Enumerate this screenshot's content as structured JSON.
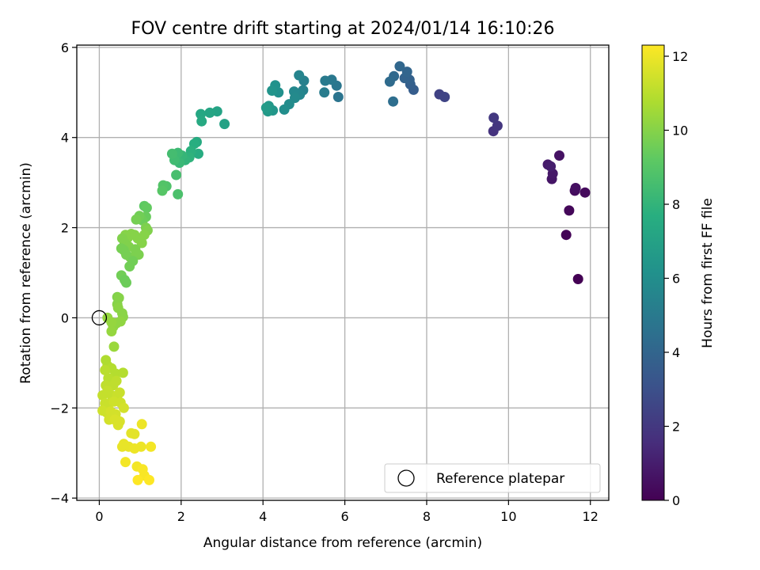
{
  "chart_data": {
    "type": "scatter",
    "title": "FOV centre drift starting at 2024/01/14 16:10:26",
    "xlabel": "Angular distance from reference (arcmin)",
    "ylabel": "Rotation from reference (arcmin)",
    "xlim": [
      -0.55,
      12.45
    ],
    "ylim": [
      -4.05,
      6.05
    ],
    "xticks": [
      0,
      2,
      4,
      6,
      8,
      10,
      12
    ],
    "yticks": [
      -4,
      -2,
      0,
      2,
      4,
      6
    ],
    "xtick_labels": [
      "0",
      "2",
      "4",
      "6",
      "8",
      "10",
      "12"
    ],
    "ytick_labels": [
      "−4",
      "−2",
      "0",
      "2",
      "4",
      "6"
    ],
    "grid": true,
    "legend_position": "lower-right",
    "colormap": "viridis",
    "colorbar": {
      "label": "Hours from first FF file",
      "range": [
        0,
        12.3
      ],
      "ticks": [
        0,
        2,
        4,
        6,
        8,
        10,
        12
      ],
      "tick_labels": [
        "0",
        "2",
        "4",
        "6",
        "8",
        "10",
        "12"
      ]
    },
    "reference": {
      "name": "Reference platepar",
      "x": 0,
      "y": 0
    },
    "series": [
      {
        "points": [
          [
            11.7,
            0.86,
            0.0
          ],
          [
            11.41,
            1.84,
            0.1
          ],
          [
            11.48,
            2.38,
            0.2
          ],
          [
            11.87,
            2.78,
            0.3
          ],
          [
            11.62,
            2.82,
            0.4
          ],
          [
            11.64,
            2.88,
            0.5
          ],
          [
            11.24,
            3.6,
            0.6
          ],
          [
            11.06,
            3.08,
            0.7
          ],
          [
            11.08,
            3.2,
            0.8
          ],
          [
            10.96,
            3.4,
            0.9
          ],
          [
            11.03,
            3.36,
            1.0
          ],
          [
            9.63,
            4.14,
            1.8
          ],
          [
            9.73,
            4.26,
            1.9
          ],
          [
            9.64,
            4.44,
            2.0
          ],
          [
            8.31,
            4.96,
            2.4
          ],
          [
            8.44,
            4.9,
            2.5
          ],
          [
            7.68,
            5.06,
            3.6
          ],
          [
            7.6,
            5.18,
            3.7
          ],
          [
            7.58,
            5.28,
            3.8
          ],
          [
            7.46,
            5.32,
            3.9
          ],
          [
            7.52,
            5.46,
            4.0
          ],
          [
            7.34,
            5.58,
            4.1
          ],
          [
            7.2,
            5.36,
            4.2
          ],
          [
            7.1,
            5.24,
            4.3
          ],
          [
            7.18,
            4.8,
            4.4
          ],
          [
            5.84,
            4.9,
            4.7
          ],
          [
            5.8,
            5.15,
            4.8
          ],
          [
            5.68,
            5.28,
            4.9
          ],
          [
            5.52,
            5.26,
            5.0
          ],
          [
            5.5,
            5.0,
            5.1
          ],
          [
            5.0,
            5.26,
            5.3
          ],
          [
            4.98,
            5.05,
            5.4
          ],
          [
            4.88,
            5.38,
            5.5
          ],
          [
            4.9,
            4.95,
            5.6
          ],
          [
            4.76,
            5.02,
            5.7
          ],
          [
            4.78,
            4.88,
            5.8
          ],
          [
            4.64,
            4.74,
            5.9
          ],
          [
            4.52,
            4.62,
            6.0
          ],
          [
            4.38,
            5.0,
            6.1
          ],
          [
            4.3,
            5.16,
            6.2
          ],
          [
            4.22,
            5.04,
            6.3
          ],
          [
            4.24,
            4.6,
            6.4
          ],
          [
            4.14,
            4.7,
            6.5
          ],
          [
            4.12,
            4.58,
            6.6
          ],
          [
            4.08,
            4.66,
            6.7
          ],
          [
            3.06,
            4.3,
            7.0
          ],
          [
            2.88,
            4.58,
            7.1
          ],
          [
            2.7,
            4.55,
            7.2
          ],
          [
            2.48,
            4.52,
            7.3
          ],
          [
            2.5,
            4.36,
            7.4
          ],
          [
            2.38,
            3.9,
            7.5
          ],
          [
            2.42,
            3.64,
            7.6
          ],
          [
            2.32,
            3.86,
            7.7
          ],
          [
            2.24,
            3.7,
            7.8
          ],
          [
            2.2,
            3.56,
            7.9
          ],
          [
            2.1,
            3.5,
            8.0
          ],
          [
            2.02,
            3.6,
            8.1
          ],
          [
            1.96,
            3.44,
            8.2
          ],
          [
            1.92,
            3.66,
            8.3
          ],
          [
            1.84,
            3.5,
            8.4
          ],
          [
            1.78,
            3.64,
            8.5
          ],
          [
            1.88,
            3.17,
            8.6
          ],
          [
            1.92,
            2.74,
            8.7
          ],
          [
            1.64,
            2.92,
            8.8
          ],
          [
            1.56,
            2.94,
            8.9
          ],
          [
            1.54,
            2.82,
            9.0
          ],
          [
            1.1,
            2.48,
            9.2
          ],
          [
            1.16,
            2.44,
            9.3
          ],
          [
            1.14,
            2.24,
            9.4
          ],
          [
            1.06,
            2.16,
            9.5
          ],
          [
            0.98,
            2.26,
            9.6
          ],
          [
            0.9,
            2.18,
            9.7
          ],
          [
            1.14,
            2.0,
            9.8
          ],
          [
            1.18,
            1.94,
            9.9
          ],
          [
            1.1,
            1.84,
            10.0
          ],
          [
            1.04,
            1.66,
            10.0
          ],
          [
            0.94,
            1.76,
            10.0
          ],
          [
            0.86,
            1.84,
            10.0
          ],
          [
            0.78,
            1.86,
            10.0
          ],
          [
            0.7,
            1.78,
            10.0
          ],
          [
            0.64,
            1.84,
            10.0
          ],
          [
            0.56,
            1.76,
            9.9
          ],
          [
            0.62,
            1.66,
            9.9
          ],
          [
            0.72,
            1.58,
            9.9
          ],
          [
            0.88,
            1.52,
            9.8
          ],
          [
            0.96,
            1.4,
            9.8
          ],
          [
            0.76,
            1.34,
            9.8
          ],
          [
            0.6,
            1.5,
            9.7
          ],
          [
            0.54,
            1.54,
            9.7
          ],
          [
            0.66,
            1.4,
            9.7
          ],
          [
            0.82,
            1.26,
            9.6
          ],
          [
            0.74,
            1.14,
            9.6
          ],
          [
            0.54,
            0.94,
            9.6
          ],
          [
            0.62,
            0.84,
            9.5
          ],
          [
            0.66,
            0.78,
            9.5
          ],
          [
            0.44,
            0.46,
            9.9
          ],
          [
            0.48,
            0.44,
            10.0
          ],
          [
            0.44,
            0.3,
            10.0
          ],
          [
            0.46,
            0.22,
            10.1
          ],
          [
            0.56,
            0.1,
            10.1
          ],
          [
            0.58,
            0.02,
            10.1
          ],
          [
            0.52,
            -0.08,
            10.2
          ],
          [
            0.42,
            -0.12,
            10.2
          ],
          [
            0.34,
            -0.2,
            10.2
          ],
          [
            0.3,
            -0.1,
            10.3
          ],
          [
            0.2,
            0.0,
            10.3
          ],
          [
            0.3,
            -0.3,
            10.3
          ],
          [
            0.36,
            -0.64,
            10.4
          ],
          [
            0.16,
            -0.94,
            10.8
          ],
          [
            0.2,
            -1.06,
            10.8
          ],
          [
            0.3,
            -1.12,
            10.9
          ],
          [
            0.4,
            -1.24,
            10.9
          ],
          [
            0.58,
            -1.22,
            10.9
          ],
          [
            0.14,
            -1.16,
            11.0
          ],
          [
            0.22,
            -1.34,
            11.0
          ],
          [
            0.28,
            -1.4,
            11.0
          ],
          [
            0.42,
            -1.4,
            11.1
          ],
          [
            0.34,
            -1.5,
            11.1
          ],
          [
            0.16,
            -1.5,
            11.1
          ],
          [
            0.08,
            -1.72,
            11.2
          ],
          [
            0.2,
            -1.62,
            11.2
          ],
          [
            0.3,
            -1.72,
            11.2
          ],
          [
            0.44,
            -1.72,
            11.3
          ],
          [
            0.5,
            -1.66,
            11.3
          ],
          [
            0.14,
            -1.9,
            11.3
          ],
          [
            0.24,
            -1.9,
            11.3
          ],
          [
            0.36,
            -1.86,
            11.4
          ],
          [
            0.52,
            -1.88,
            11.4
          ],
          [
            0.08,
            -2.06,
            11.4
          ],
          [
            0.18,
            -2.1,
            11.4
          ],
          [
            0.28,
            -2.08,
            11.5
          ],
          [
            0.4,
            -2.14,
            11.5
          ],
          [
            0.6,
            -2.0,
            11.5
          ],
          [
            0.24,
            -2.26,
            11.5
          ],
          [
            0.38,
            -2.26,
            11.6
          ],
          [
            0.5,
            -2.3,
            11.6
          ],
          [
            0.46,
            -2.38,
            11.6
          ],
          [
            0.78,
            -2.56,
            11.8
          ],
          [
            0.86,
            -2.58,
            11.8
          ],
          [
            0.6,
            -2.8,
            11.9
          ],
          [
            0.72,
            -2.86,
            11.9
          ],
          [
            0.56,
            -2.86,
            11.9
          ],
          [
            0.86,
            -2.9,
            12.0
          ],
          [
            1.02,
            -2.86,
            12.0
          ],
          [
            1.04,
            -2.36,
            12.0
          ],
          [
            1.26,
            -2.86,
            12.1
          ],
          [
            0.64,
            -3.2,
            12.1
          ],
          [
            0.92,
            -3.3,
            12.1
          ],
          [
            1.06,
            -3.36,
            12.2
          ],
          [
            1.1,
            -3.5,
            12.2
          ],
          [
            0.94,
            -3.6,
            12.3
          ],
          [
            1.22,
            -3.6,
            12.3
          ]
        ]
      }
    ]
  }
}
